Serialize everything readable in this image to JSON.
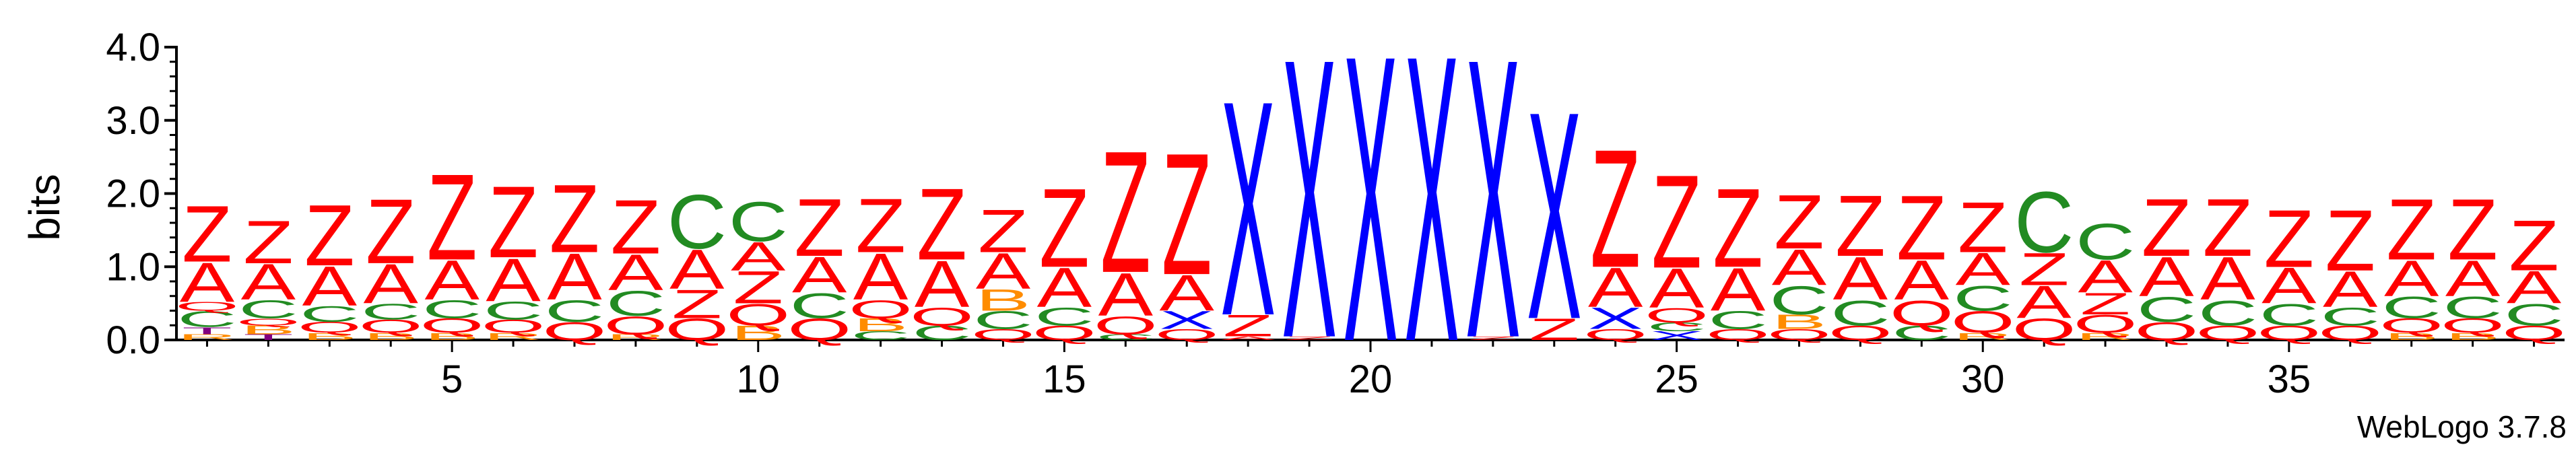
{
  "colors": {
    "A": "#ff0000",
    "Z": "#ff0000",
    "C": "#228b22",
    "Q": "#ff0000",
    "B": "#ff8c00",
    "X": "#0000ff",
    "T": "#800080",
    "R": "#ff8c00",
    "axis": "#000000"
  },
  "chart_data": {
    "type": "sequence-logo",
    "ylabel": "bits",
    "ylim": [
      0,
      4.0
    ],
    "yticks": [
      "0.0",
      "1.0",
      "2.0",
      "3.0",
      "4.0"
    ],
    "xticks": [
      5,
      10,
      15,
      20,
      25,
      30,
      35
    ],
    "xlim": [
      0.5,
      39.5
    ],
    "credit": "WebLogo 3.7.8",
    "columns": [
      {
        "pos": 1,
        "stack": [
          [
            "R",
            0.08
          ],
          [
            "T",
            0.1
          ],
          [
            "C",
            0.22
          ],
          [
            "Q",
            0.12
          ],
          [
            "A",
            0.55
          ],
          [
            "Z",
            0.78
          ]
        ]
      },
      {
        "pos": 2,
        "stack": [
          [
            "T",
            0.08
          ],
          [
            "B",
            0.12
          ],
          [
            "Q",
            0.1
          ],
          [
            "C",
            0.25
          ],
          [
            "A",
            0.5
          ],
          [
            "Z",
            0.6
          ]
        ]
      },
      {
        "pos": 3,
        "stack": [
          [
            "B",
            0.1
          ],
          [
            "Q",
            0.15
          ],
          [
            "C",
            0.22
          ],
          [
            "A",
            0.55
          ],
          [
            "Z",
            0.85
          ]
        ]
      },
      {
        "pos": 4,
        "stack": [
          [
            "B",
            0.1
          ],
          [
            "Q",
            0.18
          ],
          [
            "C",
            0.22
          ],
          [
            "A",
            0.55
          ],
          [
            "Z",
            0.9
          ]
        ]
      },
      {
        "pos": 5,
        "stack": [
          [
            "B",
            0.1
          ],
          [
            "Q",
            0.2
          ],
          [
            "C",
            0.25
          ],
          [
            "A",
            0.55
          ],
          [
            "Z",
            1.2
          ]
        ]
      },
      {
        "pos": 6,
        "stack": [
          [
            "R",
            0.1
          ],
          [
            "Q",
            0.18
          ],
          [
            "C",
            0.25
          ],
          [
            "A",
            0.6
          ],
          [
            "Z",
            1.0
          ]
        ]
      },
      {
        "pos": 7,
        "stack": [
          [
            "Q",
            0.25
          ],
          [
            "C",
            0.3
          ],
          [
            "A",
            0.65
          ],
          [
            "Z",
            0.95
          ]
        ]
      },
      {
        "pos": 8,
        "stack": [
          [
            "R",
            0.08
          ],
          [
            "Q",
            0.25
          ],
          [
            "C",
            0.35
          ],
          [
            "A",
            0.5
          ],
          [
            "Z",
            0.75
          ]
        ]
      },
      {
        "pos": 9,
        "stack": [
          [
            "Q",
            0.3
          ],
          [
            "Z",
            0.4
          ],
          [
            "A",
            0.55
          ],
          [
            "C",
            0.75
          ]
        ]
      },
      {
        "pos": 10,
        "stack": [
          [
            "B",
            0.2
          ],
          [
            "Q",
            0.3
          ],
          [
            "Z",
            0.45
          ],
          [
            "A",
            0.4
          ],
          [
            "C",
            0.55
          ]
        ]
      },
      {
        "pos": 11,
        "stack": [
          [
            "Q",
            0.3
          ],
          [
            "C",
            0.35
          ],
          [
            "A",
            0.5
          ],
          [
            "Z",
            0.8
          ]
        ]
      },
      {
        "pos": 12,
        "stack": [
          [
            "C",
            0.12
          ],
          [
            "B",
            0.18
          ],
          [
            "Q",
            0.25
          ],
          [
            "A",
            0.65
          ],
          [
            "Z",
            0.75
          ]
        ]
      },
      {
        "pos": 13,
        "stack": [
          [
            "C",
            0.2
          ],
          [
            "Q",
            0.25
          ],
          [
            "A",
            0.65
          ],
          [
            "Z",
            1.0
          ]
        ]
      },
      {
        "pos": 14,
        "stack": [
          [
            "Q",
            0.15
          ],
          [
            "C",
            0.25
          ],
          [
            "B",
            0.3
          ],
          [
            "A",
            0.5
          ],
          [
            "Z",
            0.6
          ]
        ]
      },
      {
        "pos": 15,
        "stack": [
          [
            "Q",
            0.2
          ],
          [
            "C",
            0.25
          ],
          [
            "A",
            0.55
          ],
          [
            "Z",
            1.1
          ]
        ]
      },
      {
        "pos": 16,
        "stack": [
          [
            "C",
            0.08
          ],
          [
            "Q",
            0.25
          ],
          [
            "A",
            0.6
          ],
          [
            "Z",
            1.7
          ]
        ]
      },
      {
        "pos": 17,
        "stack": [
          [
            "Q",
            0.15
          ],
          [
            "X",
            0.25
          ],
          [
            "A",
            0.5
          ],
          [
            "Z",
            1.7
          ]
        ]
      },
      {
        "pos": 18,
        "stack": [
          [
            "A",
            0.05
          ],
          [
            "Z",
            0.3
          ],
          [
            "X",
            3.0
          ]
        ]
      },
      {
        "pos": 19,
        "stack": [
          [
            "Z",
            0.05
          ],
          [
            "X",
            3.9
          ]
        ]
      },
      {
        "pos": 20,
        "stack": [
          [
            "X",
            4.0
          ]
        ]
      },
      {
        "pos": 21,
        "stack": [
          [
            "X",
            4.0
          ]
        ]
      },
      {
        "pos": 22,
        "stack": [
          [
            "Z",
            0.05
          ],
          [
            "X",
            3.9
          ]
        ]
      },
      {
        "pos": 23,
        "stack": [
          [
            "Z",
            0.3
          ],
          [
            "X",
            2.9
          ]
        ]
      },
      {
        "pos": 24,
        "stack": [
          [
            "Q",
            0.15
          ],
          [
            "X",
            0.3
          ],
          [
            "A",
            0.55
          ],
          [
            "Z",
            1.65
          ]
        ]
      },
      {
        "pos": 25,
        "stack": [
          [
            "X",
            0.12
          ],
          [
            "C",
            0.12
          ],
          [
            "Q",
            0.2
          ],
          [
            "A",
            0.55
          ],
          [
            "Z",
            1.3
          ]
        ]
      },
      {
        "pos": 26,
        "stack": [
          [
            "Q",
            0.15
          ],
          [
            "C",
            0.25
          ],
          [
            "A",
            0.6
          ],
          [
            "Z",
            1.1
          ]
        ]
      },
      {
        "pos": 27,
        "stack": [
          [
            "Q",
            0.15
          ],
          [
            "B",
            0.2
          ],
          [
            "C",
            0.4
          ],
          [
            "A",
            0.5
          ],
          [
            "Z",
            0.75
          ]
        ]
      },
      {
        "pos": 28,
        "stack": [
          [
            "Q",
            0.2
          ],
          [
            "C",
            0.35
          ],
          [
            "A",
            0.6
          ],
          [
            "Z",
            0.85
          ]
        ]
      },
      {
        "pos": 29,
        "stack": [
          [
            "C",
            0.2
          ],
          [
            "Q",
            0.35
          ],
          [
            "A",
            0.55
          ],
          [
            "Z",
            0.9
          ]
        ]
      },
      {
        "pos": 30,
        "stack": [
          [
            "R",
            0.1
          ],
          [
            "Q",
            0.3
          ],
          [
            "C",
            0.35
          ],
          [
            "A",
            0.45
          ],
          [
            "Z",
            0.7
          ]
        ]
      },
      {
        "pos": 31,
        "stack": [
          [
            "Q",
            0.3
          ],
          [
            "A",
            0.45
          ],
          [
            "Z",
            0.45
          ],
          [
            "C",
            0.85
          ]
        ]
      },
      {
        "pos": 32,
        "stack": [
          [
            "R",
            0.1
          ],
          [
            "Q",
            0.25
          ],
          [
            "Z",
            0.3
          ],
          [
            "A",
            0.45
          ],
          [
            "C",
            0.5
          ]
        ]
      },
      {
        "pos": 33,
        "stack": [
          [
            "Q",
            0.25
          ],
          [
            "C",
            0.35
          ],
          [
            "A",
            0.55
          ],
          [
            "Z",
            0.8
          ]
        ]
      },
      {
        "pos": 34,
        "stack": [
          [
            "Q",
            0.2
          ],
          [
            "C",
            0.35
          ],
          [
            "A",
            0.6
          ],
          [
            "Z",
            0.8
          ]
        ]
      },
      {
        "pos": 35,
        "stack": [
          [
            "Q",
            0.2
          ],
          [
            "C",
            0.3
          ],
          [
            "A",
            0.5
          ],
          [
            "Z",
            0.8
          ]
        ]
      },
      {
        "pos": 36,
        "stack": [
          [
            "Q",
            0.2
          ],
          [
            "C",
            0.25
          ],
          [
            "A",
            0.5
          ],
          [
            "Z",
            0.85
          ]
        ]
      },
      {
        "pos": 37,
        "stack": [
          [
            "B",
            0.1
          ],
          [
            "Q",
            0.2
          ],
          [
            "C",
            0.3
          ],
          [
            "A",
            0.5
          ],
          [
            "Z",
            0.85
          ]
        ]
      },
      {
        "pos": 38,
        "stack": [
          [
            "B",
            0.1
          ],
          [
            "Q",
            0.2
          ],
          [
            "C",
            0.3
          ],
          [
            "A",
            0.5
          ],
          [
            "Z",
            0.85
          ]
        ]
      },
      {
        "pos": 39,
        "stack": [
          [
            "Q",
            0.2
          ],
          [
            "C",
            0.3
          ],
          [
            "A",
            0.45
          ],
          [
            "Z",
            0.7
          ]
        ]
      }
    ]
  }
}
